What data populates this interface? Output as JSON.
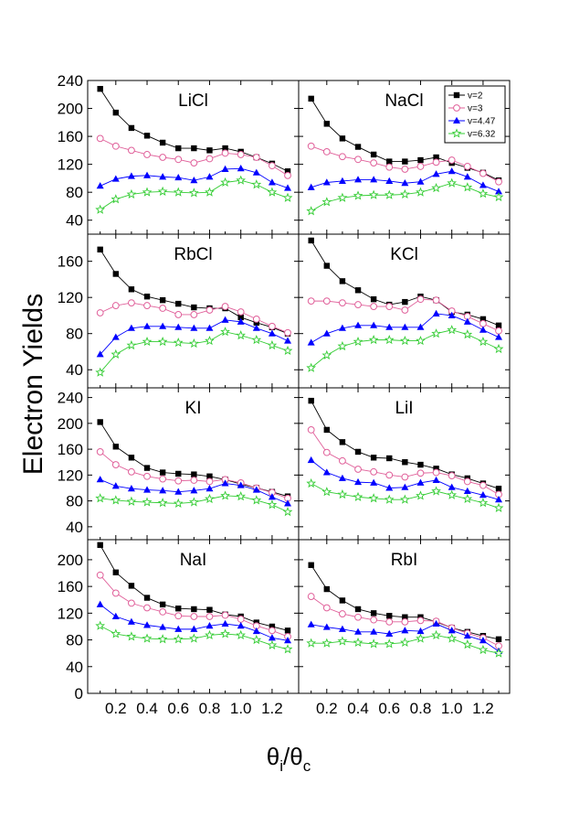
{
  "figure": {
    "ylabel": "Electron Yields",
    "xlabel_main": "θ",
    "xlabel_sub_i": "i",
    "xlabel_slash": "/θ",
    "xlabel_sub_c": "c"
  },
  "chart_data": {
    "type": "line",
    "x": [
      0.1,
      0.2,
      0.3,
      0.4,
      0.5,
      0.6,
      0.7,
      0.8,
      0.9,
      1.0,
      1.1,
      1.2,
      1.3
    ],
    "xlim": [
      0.02,
      1.37
    ],
    "x_ticks": [
      0.2,
      0.4,
      0.6,
      0.8,
      1.0,
      1.2
    ],
    "x_tick_labels": [
      "0.2",
      "0.4",
      "0.6",
      "0.8",
      "1.0",
      "1.2"
    ],
    "series_styles": [
      {
        "name": "v=2",
        "color": "#000000",
        "marker": "square",
        "filled": true
      },
      {
        "name": "v=3",
        "color": "#e0609a",
        "marker": "circle",
        "filled": false
      },
      {
        "name": "v=4.47",
        "color": "#0000ff",
        "marker": "triangle",
        "filled": true
      },
      {
        "name": "v=6.32",
        "color": "#33cc33",
        "marker": "star",
        "filled": false
      }
    ],
    "legend_position": "top-right of NaCl panel",
    "panels": [
      {
        "label": "LiCl",
        "ylim": [
          20,
          240
        ],
        "y_ticks": [
          40,
          80,
          120,
          160,
          200,
          240
        ],
        "series": [
          [
            228,
            194,
            172,
            161,
            151,
            143,
            143,
            140,
            143,
            138,
            130,
            121,
            110
          ],
          [
            157,
            146,
            140,
            134,
            130,
            127,
            122,
            128,
            136,
            134,
            130,
            118,
            104
          ],
          [
            89,
            99,
            103,
            104,
            102,
            101,
            97,
            102,
            113,
            114,
            108,
            94,
            86
          ],
          [
            55,
            70,
            77,
            80,
            81,
            80,
            79,
            80,
            94,
            97,
            91,
            80,
            72
          ]
        ]
      },
      {
        "label": "NaCl",
        "ylim": [
          20,
          240
        ],
        "y_ticks": [],
        "series": [
          [
            214,
            178,
            157,
            145,
            134,
            124,
            124,
            126,
            130,
            122,
            115,
            108,
            97
          ],
          [
            146,
            138,
            131,
            127,
            122,
            116,
            113,
            117,
            123,
            126,
            117,
            107,
            95
          ],
          [
            87,
            94,
            96,
            98,
            98,
            96,
            93,
            95,
            106,
            110,
            102,
            90,
            81
          ],
          [
            53,
            66,
            72,
            75,
            76,
            76,
            77,
            80,
            86,
            93,
            87,
            78,
            73
          ]
        ]
      },
      {
        "label": "RbCl",
        "ylim": [
          20,
          190
        ],
        "y_ticks": [
          40,
          80,
          120,
          160
        ],
        "series": [
          [
            173,
            146,
            129,
            121,
            117,
            113,
            109,
            108,
            108,
            98,
            92,
            87,
            80
          ],
          [
            103,
            111,
            114,
            111,
            108,
            101,
            101,
            106,
            110,
            104,
            96,
            88,
            81
          ],
          [
            57,
            76,
            86,
            88,
            88,
            87,
            86,
            86,
            95,
            93,
            86,
            80,
            72
          ],
          [
            37,
            57,
            67,
            71,
            71,
            70,
            69,
            72,
            82,
            78,
            73,
            67,
            61
          ]
        ]
      },
      {
        "label": "KCl",
        "ylim": [
          20,
          190
        ],
        "y_ticks": [],
        "series": [
          [
            183,
            155,
            138,
            128,
            118,
            112,
            115,
            121,
            117,
            104,
            101,
            96,
            89
          ],
          [
            116,
            116,
            114,
            112,
            110,
            110,
            106,
            118,
            117,
            105,
            99,
            91,
            83
          ],
          [
            70,
            80,
            86,
            89,
            89,
            87,
            87,
            87,
            102,
            100,
            93,
            84,
            76
          ],
          [
            42,
            56,
            66,
            71,
            73,
            73,
            72,
            72,
            80,
            84,
            79,
            71,
            63
          ]
        ]
      },
      {
        "label": "KI",
        "ylim": [
          20,
          255
        ],
        "y_ticks": [
          40,
          80,
          120,
          160,
          200,
          240
        ],
        "series": [
          [
            202,
            164,
            147,
            131,
            124,
            122,
            121,
            118,
            113,
            106,
            100,
            94,
            87
          ],
          [
            156,
            136,
            125,
            118,
            114,
            111,
            112,
            110,
            113,
            108,
            100,
            93,
            84
          ],
          [
            113,
            103,
            99,
            97,
            96,
            94,
            96,
            99,
            107,
            104,
            97,
            86,
            76
          ],
          [
            84,
            81,
            79,
            78,
            77,
            76,
            78,
            83,
            88,
            87,
            81,
            74,
            63
          ]
        ]
      },
      {
        "label": "LiI",
        "ylim": [
          20,
          255
        ],
        "y_ticks": [],
        "series": [
          [
            235,
            190,
            171,
            156,
            147,
            146,
            140,
            136,
            130,
            121,
            115,
            107,
            99
          ],
          [
            190,
            155,
            142,
            129,
            125,
            120,
            117,
            123,
            124,
            119,
            110,
            104,
            90
          ],
          [
            143,
            124,
            115,
            109,
            108,
            100,
            101,
            108,
            112,
            101,
            95,
            89,
            82
          ],
          [
            107,
            94,
            90,
            86,
            84,
            82,
            82,
            88,
            95,
            89,
            83,
            77,
            69
          ]
        ]
      },
      {
        "label": "NaI",
        "ylim": [
          0,
          230
        ],
        "y_ticks": [
          0,
          40,
          80,
          120,
          160,
          200
        ],
        "series": [
          [
            222,
            181,
            161,
            143,
            133,
            127,
            126,
            125,
            118,
            115,
            106,
            100,
            94
          ],
          [
            177,
            150,
            135,
            128,
            122,
            116,
            115,
            115,
            117,
            111,
            101,
            94,
            85
          ],
          [
            133,
            115,
            107,
            102,
            99,
            96,
            96,
            101,
            104,
            101,
            93,
            83,
            79
          ],
          [
            101,
            89,
            85,
            82,
            81,
            81,
            82,
            87,
            89,
            87,
            80,
            72,
            66
          ]
        ]
      },
      {
        "label": "RbI",
        "ylim": [
          0,
          230
        ],
        "y_ticks": [],
        "series": [
          [
            192,
            156,
            139,
            126,
            120,
            116,
            114,
            114,
            107,
            98,
            92,
            86,
            81
          ],
          [
            145,
            128,
            119,
            114,
            110,
            107,
            107,
            109,
            108,
            98,
            90,
            83,
            71
          ],
          [
            103,
            99,
            96,
            92,
            92,
            89,
            94,
            93,
            104,
            94,
            86,
            79,
            63
          ],
          [
            75,
            75,
            78,
            76,
            74,
            74,
            76,
            82,
            87,
            82,
            73,
            65,
            60
          ]
        ]
      }
    ]
  }
}
